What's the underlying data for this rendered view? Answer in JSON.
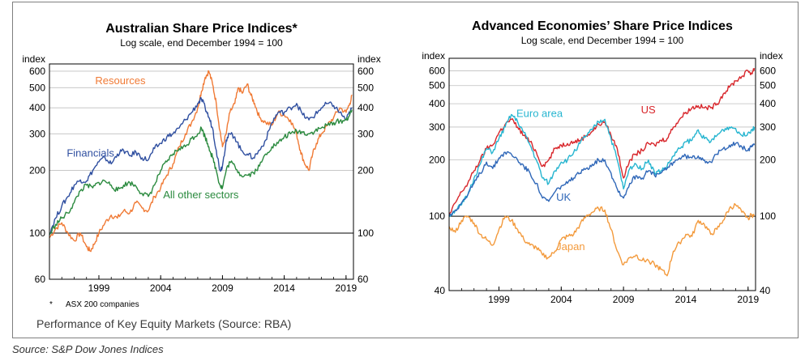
{
  "caption": "Performance of Key Equity Markets (Source: RBA)",
  "source": "Source: S&P Dow Jones Indices",
  "chart_data": [
    {
      "type": "line",
      "title": "Australian Share Price Indices*",
      "subtitle": "Log scale, end December 1994 = 100",
      "ylabel": "index",
      "yscale": "log",
      "ylim": [
        60,
        650
      ],
      "xlim": [
        1995,
        2019.6
      ],
      "yticks": [
        60,
        100,
        200,
        300,
        400,
        500,
        600
      ],
      "xticks": [
        "1999",
        "2004",
        "2009",
        "2014",
        "2019"
      ],
      "xtick_values": [
        1999,
        2004,
        2009,
        2014,
        2019
      ],
      "reference_line": 100,
      "footnote_marker": "*",
      "footnote": "ASX 200 companies",
      "series": [
        {
          "name": "Resources",
          "color": "#f07a35",
          "label_x": 1998.7,
          "label_y": 520,
          "x": [
            1995,
            1995.5,
            1996,
            1996.5,
            1997,
            1997.5,
            1998,
            1998.3,
            1998.6,
            1999,
            1999.5,
            2000,
            2000.5,
            2001,
            2001.5,
            2002,
            2002.5,
            2003,
            2003.5,
            2004,
            2004.5,
            2005,
            2005.5,
            2006,
            2006.5,
            2007,
            2007.3,
            2007.6,
            2007.9,
            2008.2,
            2008.5,
            2008.8,
            2009,
            2009.3,
            2009.6,
            2010,
            2010.3,
            2010.6,
            2011,
            2011.3,
            2011.6,
            2012,
            2012.5,
            2013,
            2013.5,
            2014,
            2014.5,
            2015,
            2015.3,
            2015.6,
            2016,
            2016.3,
            2016.6,
            2017,
            2017.5,
            2018,
            2018.5,
            2019,
            2019.3,
            2019.5
          ],
          "y": [
            95,
            105,
            112,
            100,
            92,
            100,
            86,
            82,
            88,
            100,
            112,
            122,
            118,
            128,
            125,
            140,
            132,
            128,
            150,
            165,
            190,
            215,
            260,
            300,
            340,
            400,
            480,
            560,
            600,
            520,
            420,
            310,
            260,
            300,
            380,
            420,
            500,
            470,
            520,
            460,
            420,
            360,
            340,
            330,
            380,
            370,
            350,
            300,
            250,
            220,
            200,
            240,
            270,
            300,
            330,
            360,
            400,
            380,
            420,
            460
          ]
        },
        {
          "name": "Financials",
          "color": "#2f4fa0",
          "label_x": 1996.4,
          "label_y": 233,
          "x": [
            1995,
            1995.5,
            1996,
            1996.5,
            1997,
            1997.5,
            1998,
            1998.5,
            1999,
            1999.5,
            2000,
            2000.5,
            2001,
            2001.5,
            2002,
            2002.5,
            2003,
            2003.5,
            2004,
            2004.5,
            2005,
            2005.5,
            2006,
            2006.5,
            2007,
            2007.3,
            2007.6,
            2007.9,
            2008.2,
            2008.5,
            2008.8,
            2009,
            2009.3,
            2009.6,
            2010,
            2010.5,
            2011,
            2011.5,
            2012,
            2012.5,
            2013,
            2013.5,
            2014,
            2014.5,
            2015,
            2015.5,
            2016,
            2016.5,
            2017,
            2017.5,
            2018,
            2018.5,
            2019,
            2019.3,
            2019.5
          ],
          "y": [
            100,
            118,
            135,
            150,
            170,
            180,
            178,
            200,
            220,
            230,
            215,
            240,
            250,
            235,
            245,
            230,
            225,
            255,
            270,
            290,
            300,
            320,
            350,
            380,
            420,
            440,
            400,
            360,
            320,
            250,
            200,
            210,
            280,
            300,
            290,
            250,
            240,
            230,
            250,
            280,
            340,
            380,
            380,
            400,
            420,
            370,
            350,
            370,
            400,
            420,
            410,
            380,
            350,
            380,
            400
          ]
        },
        {
          "name": "All other sectors",
          "color": "#2a8a3e",
          "label_x": 2004.2,
          "label_y": 147,
          "x": [
            1995,
            1995.5,
            1996,
            1996.5,
            1997,
            1997.5,
            1998,
            1998.5,
            1999,
            1999.5,
            2000,
            2000.5,
            2001,
            2001.5,
            2002,
            2002.5,
            2003,
            2003.5,
            2004,
            2004.5,
            2005,
            2005.5,
            2006,
            2006.5,
            2007,
            2007.3,
            2007.6,
            2007.9,
            2008.2,
            2008.5,
            2008.8,
            2009,
            2009.3,
            2009.6,
            2010,
            2010.5,
            2011,
            2011.5,
            2012,
            2012.5,
            2013,
            2013.5,
            2014,
            2014.5,
            2015,
            2015.5,
            2016,
            2016.5,
            2017,
            2017.5,
            2018,
            2018.5,
            2019,
            2019.3,
            2019.5
          ],
          "y": [
            98,
            110,
            118,
            125,
            140,
            160,
            170,
            165,
            175,
            178,
            170,
            160,
            170,
            175,
            168,
            155,
            150,
            170,
            200,
            220,
            240,
            255,
            260,
            285,
            300,
            320,
            290,
            260,
            230,
            200,
            170,
            165,
            200,
            220,
            210,
            190,
            190,
            195,
            210,
            240,
            260,
            270,
            290,
            300,
            310,
            305,
            300,
            310,
            320,
            330,
            340,
            345,
            350,
            370,
            390
          ]
        }
      ]
    },
    {
      "type": "line",
      "title": "Advanced Economies’ Share Price Indices",
      "subtitle": "Log scale, end December 1994 = 100",
      "ylabel": "index",
      "yscale": "log",
      "ylim": [
        40,
        700
      ],
      "xlim": [
        1995,
        2019.6
      ],
      "yticks": [
        40,
        100,
        200,
        300,
        400,
        500,
        600
      ],
      "xticks": [
        "1999",
        "2004",
        "2009",
        "2014",
        "2019"
      ],
      "xtick_values": [
        1999,
        2004,
        2009,
        2014,
        2019
      ],
      "reference_line": 100,
      "series": [
        {
          "name": "US",
          "color": "#d8262b",
          "label_x": 2010.4,
          "label_y": 355,
          "x": [
            1995,
            1995.5,
            1996,
            1996.5,
            1997,
            1997.5,
            1998,
            1998.5,
            1999,
            1999.5,
            2000,
            2000.5,
            2001,
            2001.5,
            2002,
            2002.5,
            2003,
            2003.5,
            2004,
            2004.5,
            2005,
            2005.5,
            2006,
            2006.5,
            2007,
            2007.5,
            2008,
            2008.5,
            2009,
            2009.5,
            2010,
            2010.5,
            2011,
            2011.5,
            2012,
            2012.5,
            2013,
            2013.5,
            2014,
            2014.5,
            2015,
            2015.5,
            2016,
            2016.5,
            2017,
            2017.5,
            2018,
            2018.5,
            2019,
            2019.3,
            2019.5
          ],
          "y": [
            100,
            118,
            135,
            150,
            175,
            200,
            230,
            240,
            280,
            310,
            330,
            300,
            270,
            250,
            220,
            185,
            200,
            230,
            240,
            245,
            250,
            255,
            270,
            285,
            310,
            320,
            270,
            230,
            160,
            200,
            215,
            225,
            245,
            240,
            255,
            260,
            300,
            330,
            360,
            380,
            390,
            380,
            380,
            400,
            450,
            490,
            530,
            560,
            600,
            580,
            620
          ]
        },
        {
          "name": "Euro area",
          "color": "#26b5d0",
          "label_x": 2000.4,
          "label_y": 340,
          "x": [
            1995,
            1995.5,
            1996,
            1996.5,
            1997,
            1997.5,
            1998,
            1998.5,
            1999,
            1999.5,
            2000,
            2000.5,
            2001,
            2001.5,
            2002,
            2002.5,
            2003,
            2003.5,
            2004,
            2004.5,
            2005,
            2005.5,
            2006,
            2006.5,
            2007,
            2007.5,
            2008,
            2008.5,
            2009,
            2009.5,
            2010,
            2010.5,
            2011,
            2011.5,
            2012,
            2012.5,
            2013,
            2013.5,
            2014,
            2014.5,
            2015,
            2015.5,
            2016,
            2016.5,
            2017,
            2017.5,
            2018,
            2018.5,
            2019,
            2019.3,
            2019.5
          ],
          "y": [
            100,
            108,
            115,
            130,
            160,
            190,
            230,
            220,
            260,
            300,
            350,
            320,
            280,
            240,
            200,
            160,
            150,
            175,
            195,
            200,
            220,
            245,
            270,
            290,
            320,
            330,
            260,
            200,
            140,
            180,
            190,
            180,
            200,
            170,
            175,
            185,
            210,
            230,
            250,
            255,
            290,
            260,
            250,
            270,
            290,
            300,
            295,
            270,
            280,
            290,
            300
          ]
        },
        {
          "name": "UK",
          "color": "#2f67b8",
          "label_x": 2003.6,
          "label_y": 121,
          "x": [
            1995,
            1995.5,
            1996,
            1996.5,
            1997,
            1997.5,
            1998,
            1998.5,
            1999,
            1999.5,
            2000,
            2000.5,
            2001,
            2001.5,
            2002,
            2002.5,
            2003,
            2003.5,
            2004,
            2004.5,
            2005,
            2005.5,
            2006,
            2006.5,
            2007,
            2007.5,
            2008,
            2008.5,
            2009,
            2009.5,
            2010,
            2010.5,
            2011,
            2011.5,
            2012,
            2012.5,
            2013,
            2013.5,
            2014,
            2014.5,
            2015,
            2015.5,
            2016,
            2016.5,
            2017,
            2017.5,
            2018,
            2018.5,
            2019,
            2019.3,
            2019.5
          ],
          "y": [
            100,
            108,
            118,
            130,
            150,
            170,
            195,
            180,
            205,
            220,
            215,
            200,
            185,
            170,
            150,
            125,
            120,
            135,
            145,
            150,
            160,
            170,
            180,
            190,
            200,
            200,
            170,
            140,
            125,
            150,
            165,
            160,
            175,
            165,
            170,
            180,
            195,
            205,
            210,
            205,
            210,
            200,
            195,
            215,
            230,
            240,
            245,
            235,
            225,
            235,
            240
          ]
        },
        {
          "name": "Japan",
          "color": "#f39a3c",
          "label_x": 2003.6,
          "label_y": 66,
          "x": [
            1995,
            1995.5,
            1996,
            1996.5,
            1997,
            1997.5,
            1998,
            1998.5,
            1999,
            1999.5,
            2000,
            2000.5,
            2001,
            2001.5,
            2002,
            2002.5,
            2003,
            2003.5,
            2004,
            2004.5,
            2005,
            2005.5,
            2006,
            2006.5,
            2007,
            2007.5,
            2008,
            2008.5,
            2009,
            2009.5,
            2010,
            2010.5,
            2011,
            2011.5,
            2012,
            2012.5,
            2013,
            2013.5,
            2014,
            2014.5,
            2015,
            2015.5,
            2016,
            2016.5,
            2017,
            2017.5,
            2018,
            2018.5,
            2019,
            2019.3,
            2019.5
          ],
          "y": [
            88,
            82,
            95,
            100,
            92,
            80,
            75,
            70,
            85,
            100,
            95,
            85,
            75,
            70,
            68,
            62,
            60,
            65,
            75,
            78,
            80,
            90,
            100,
            105,
            110,
            108,
            85,
            65,
            55,
            60,
            62,
            58,
            58,
            55,
            52,
            48,
            65,
            72,
            80,
            78,
            95,
            90,
            80,
            85,
            95,
            110,
            115,
            105,
            98,
            102,
            100
          ]
        }
      ]
    }
  ]
}
